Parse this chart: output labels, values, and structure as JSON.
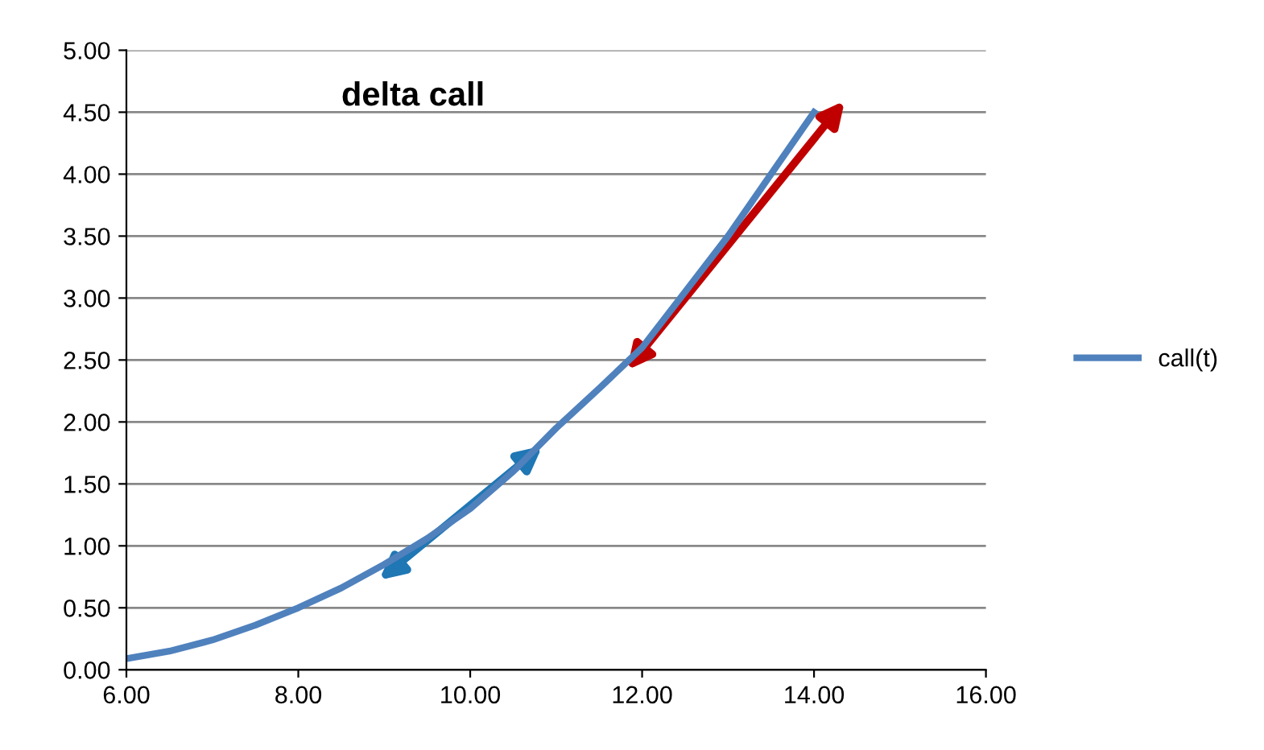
{
  "chart_data": {
    "type": "line",
    "title": "delta call",
    "x": [
      6,
      6.5,
      7,
      7.5,
      8,
      8.5,
      9,
      9.5,
      10,
      10.5,
      11,
      11.5,
      12,
      12.5,
      13,
      13.5,
      14
    ],
    "series": [
      {
        "name": "call(t)",
        "color": "#4f81bd",
        "values": [
          0.09,
          0.15,
          0.24,
          0.36,
          0.5,
          0.66,
          0.85,
          1.06,
          1.3,
          1.6,
          1.95,
          2.27,
          2.6,
          3.05,
          3.5,
          4.0,
          4.5
        ]
      }
    ],
    "xlim": [
      6,
      16
    ],
    "ylim": [
      0,
      5
    ],
    "xticks": [
      {
        "value": 6,
        "label": "6.00"
      },
      {
        "value": 8,
        "label": "8.00"
      },
      {
        "value": 10,
        "label": "10.00"
      },
      {
        "value": 12,
        "label": "12.00"
      },
      {
        "value": 14,
        "label": "14.00"
      },
      {
        "value": 16,
        "label": "16.00"
      }
    ],
    "yticks": [
      {
        "value": 0,
        "label": "0.00"
      },
      {
        "value": 0.5,
        "label": "0.50"
      },
      {
        "value": 1,
        "label": "1.00"
      },
      {
        "value": 1.5,
        "label": "1.50"
      },
      {
        "value": 2,
        "label": "2.00"
      },
      {
        "value": 2.5,
        "label": "2.50"
      },
      {
        "value": 3,
        "label": "3.00"
      },
      {
        "value": 3.5,
        "label": "3.50"
      },
      {
        "value": 4,
        "label": "4.00"
      },
      {
        "value": 4.5,
        "label": "4.50"
      },
      {
        "value": 5,
        "label": "5.00"
      }
    ],
    "grid": "y",
    "legend": "right",
    "marker": "none",
    "line_style": "solid"
  }
}
